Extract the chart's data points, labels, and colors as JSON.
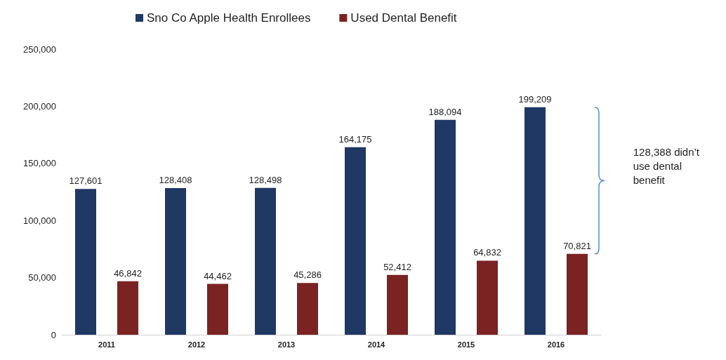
{
  "chart_data": {
    "type": "bar",
    "categories": [
      "2011",
      "2012",
      "2013",
      "2014",
      "2015",
      "2016"
    ],
    "series": [
      {
        "name": "Sno Co Apple Health Enrollees",
        "color": "#1f3864",
        "values": [
          127601,
          128408,
          128498,
          164175,
          188094,
          199209
        ],
        "value_labels": [
          "127,601",
          "128,408",
          "128,498",
          "164,175",
          "188,094",
          "199,209"
        ]
      },
      {
        "name": "Used Dental Benefit",
        "color": "#7b2222",
        "values": [
          46842,
          44462,
          45286,
          52412,
          64832,
          70821
        ],
        "value_labels": [
          "46,842",
          "44,462",
          "45,286",
          "52,412",
          "64,832",
          "70,821"
        ]
      }
    ],
    "ylim": [
      0,
      250000
    ],
    "yticks": [
      0,
      {
        "value": 50000,
        "label": "50,000"
      },
      {
        "value": 100000,
        "label": "100,000"
      },
      {
        "value": 150000,
        "label": "150,000"
      },
      {
        "value": 200000,
        "label": "200,000"
      },
      {
        "value": 250000,
        "label": "250,000"
      }
    ],
    "grid": false,
    "legend": "top",
    "annotations": [
      "128,388 didn’t\nuse dental\nbenefit"
    ]
  }
}
